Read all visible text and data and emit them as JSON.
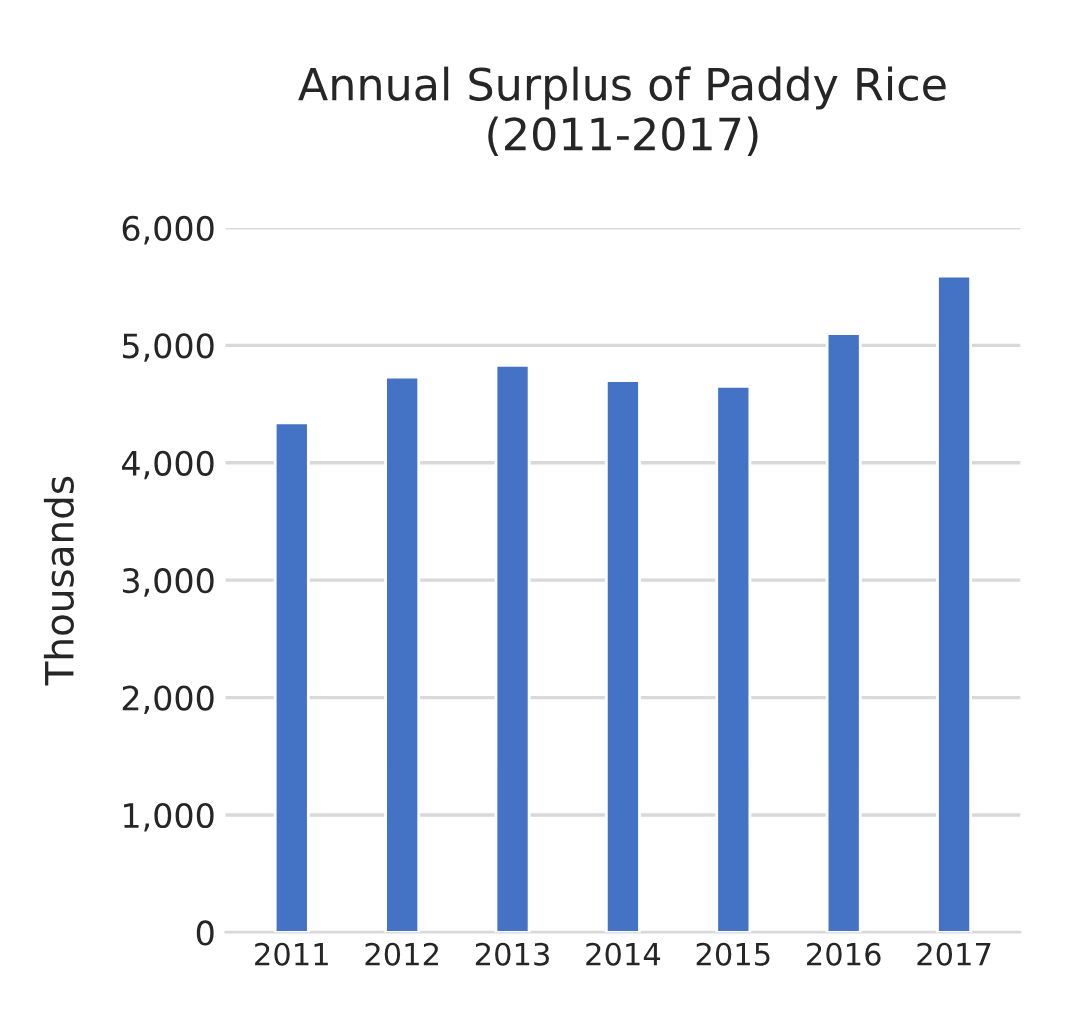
{
  "chart_data": {
    "type": "bar",
    "title": "Annual Surplus of Paddy Rice\n(2011-2017)",
    "ylabel": "Thousands",
    "categories": [
      "2011",
      "2012",
      "2013",
      "2014",
      "2015",
      "2016",
      "2017"
    ],
    "values": [
      4340,
      4730,
      4830,
      4700,
      4650,
      5100,
      5590
    ],
    "color": "#4472c4",
    "ylim": [
      0,
      6000
    ],
    "yticks": [
      {
        "value": 0,
        "label": "0"
      },
      {
        "value": 1000,
        "label": "1,000"
      },
      {
        "value": 2000,
        "label": "2,000"
      },
      {
        "value": 3000,
        "label": "3,000"
      },
      {
        "value": 4000,
        "label": "4,000"
      },
      {
        "value": 5000,
        "label": "5,000"
      },
      {
        "value": 6000,
        "label": "6,000"
      }
    ],
    "grid": "y"
  }
}
